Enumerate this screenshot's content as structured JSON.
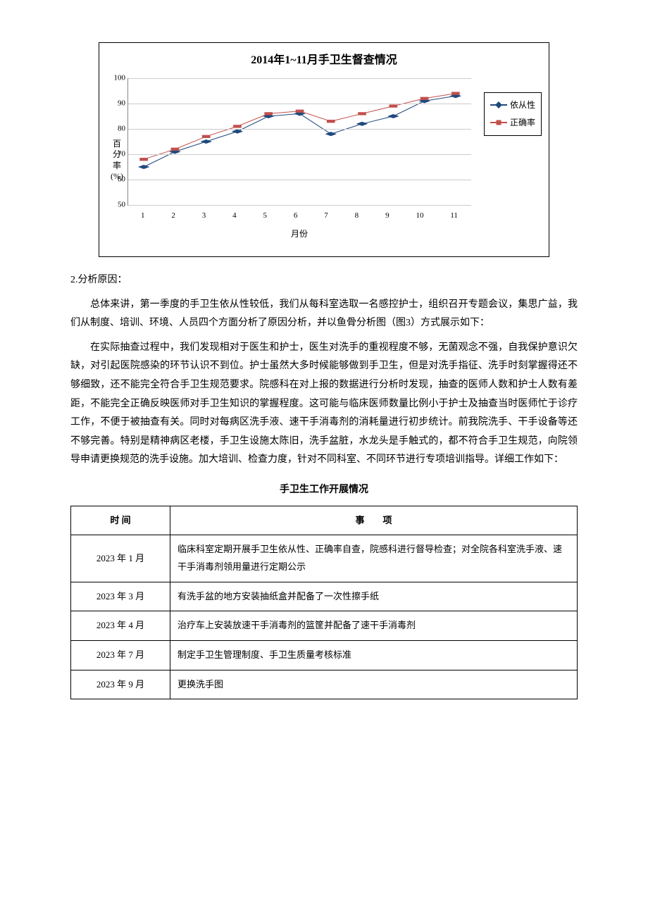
{
  "chart": {
    "type": "line",
    "title": "2014年1~11月手卫生督查情况",
    "y_label_lines": [
      "百",
      "分",
      "率",
      "(%)"
    ],
    "x_label": "月份",
    "x_ticks": [
      "1",
      "2",
      "3",
      "4",
      "5",
      "6",
      "7",
      "8",
      "9",
      "10",
      "11"
    ],
    "y_ticks": [
      50,
      60,
      70,
      80,
      90,
      100
    ],
    "ylim": [
      50,
      100
    ],
    "grid_color": "#cccccc",
    "axis_color": "#888888",
    "background_color": "#ffffff",
    "series": [
      {
        "name": "依从性",
        "color": "#1f497d",
        "marker": "diamond",
        "values": [
          65,
          71,
          75,
          79,
          85,
          86,
          78,
          82,
          85,
          91,
          93
        ]
      },
      {
        "name": "正确率",
        "color": "#c0504d",
        "marker": "square",
        "values": [
          68,
          72,
          77,
          81,
          86,
          87,
          83,
          86,
          89,
          92,
          94
        ]
      }
    ]
  },
  "section_header": "2.分析原因：",
  "paragraph1": "总体来讲，第一季度的手卫生依从性较低，我们从每科室选取一名感控护士，组织召开专题会议，集思广益，我们从制度、培训、环境、人员四个方面分析了原因分析，并以鱼骨分析图（图3）方式展示如下：",
  "paragraph2": "在实际抽查过程中，我们发现相对于医生和护士，医生对洗手的重视程度不够，无菌观念不强，自我保护意识欠缺，对引起医院感染的环节认识不到位。护士虽然大多时候能够做到手卫生，但是对洗手指征、洗手时刻掌握得还不够细致，还不能完全符合手卫生规范要求。院感科在对上报的数据进行分析时发现，抽查的医师人数和护士人数有差距，不能完全正确反映医师对手卫生知识的掌握程度。这可能与临床医师数量比例小于护士及抽查当时医师忙于诊疗工作，不便于被抽查有关。同时对每病区洗手液、速干手消毒剂的消耗量进行初步统计。前我院洗手、干手设备等还不够完善。特别是精神病区老楼，手卫生设施太陈旧，洗手盆脏，水龙头是手触式的，都不符合手卫生规范，向院领导申请更换规范的洗手设施。加大培训、检查力度，针对不同科室、不同环节进行专项培训指导。详细工作如下：",
  "table_title": "手卫生工作开展情况",
  "table": {
    "columns": [
      "时 间",
      "事　　项"
    ],
    "rows": [
      [
        "2023 年 1 月",
        "临床科室定期开展手卫生依从性、正确率自查，院感科进行督导检查；对全院各科室洗手液、速干手消毒剂领用量进行定期公示"
      ],
      [
        "2023 年 3 月",
        "有洗手盆的地方安装抽纸盒并配备了一次性擦手纸"
      ],
      [
        "2023 年 4 月",
        "治疗车上安装放速干手消毒剂的篮筐并配备了速干手消毒剂"
      ],
      [
        "2023 年 7 月",
        "制定手卫生管理制度、手卫生质量考核标准"
      ],
      [
        "2023 年 9 月",
        "更换洗手图"
      ]
    ]
  }
}
